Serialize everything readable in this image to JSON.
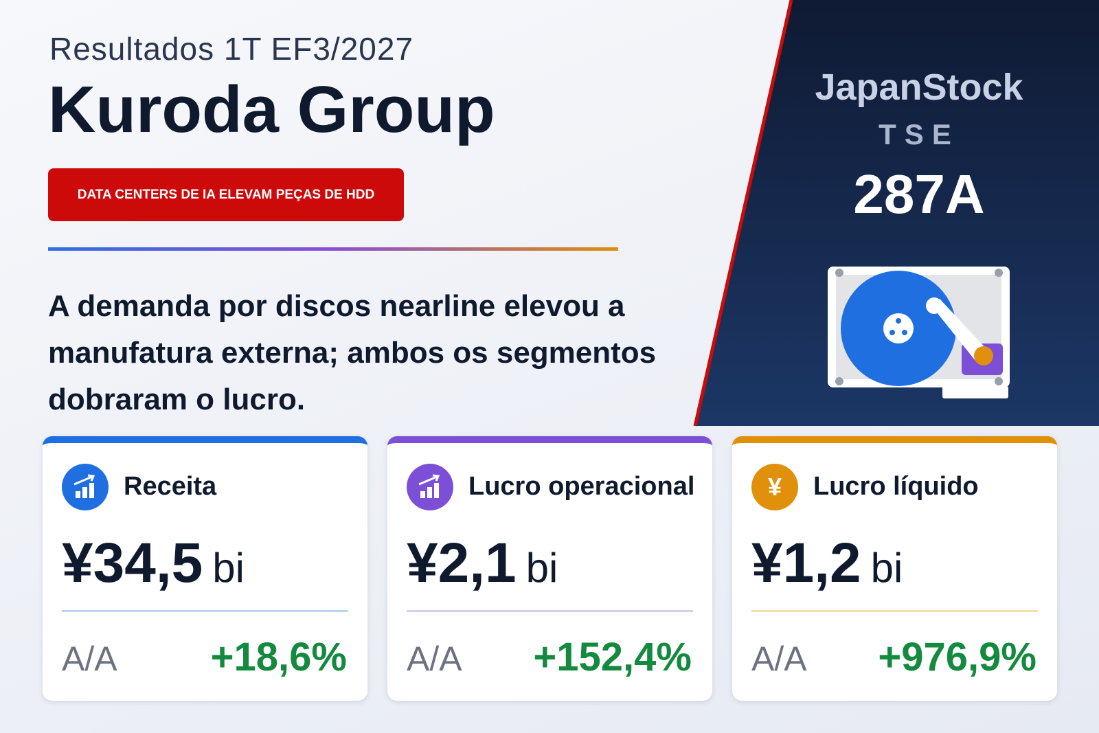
{
  "header": {
    "subtitle": "Resultados 1T EF3/2027",
    "title": "Kuroda Group",
    "tag": "DATA CENTERS DE IA ELEVAM PEÇAS DE HDD"
  },
  "summary": "A demanda por discos nearline elevou a manufatura externa; ambos os segmentos dobraram o lucro.",
  "brand": {
    "name": "JapanStock",
    "exchange": "TSE",
    "code": "287A"
  },
  "cards": [
    {
      "label": "Receita",
      "value": "¥34,5",
      "unit": "bi",
      "yoy_label": "A/A",
      "yoy": "+18,6%"
    },
    {
      "label": "Lucro operacional",
      "value": "¥2,1",
      "unit": "bi",
      "yoy_label": "A/A",
      "yoy": "+152,4%"
    },
    {
      "label": "Lucro líquido",
      "icon": "¥",
      "value": "¥1,2",
      "unit": "bi",
      "yoy_label": "A/A",
      "yoy": "+976,9%"
    }
  ]
}
